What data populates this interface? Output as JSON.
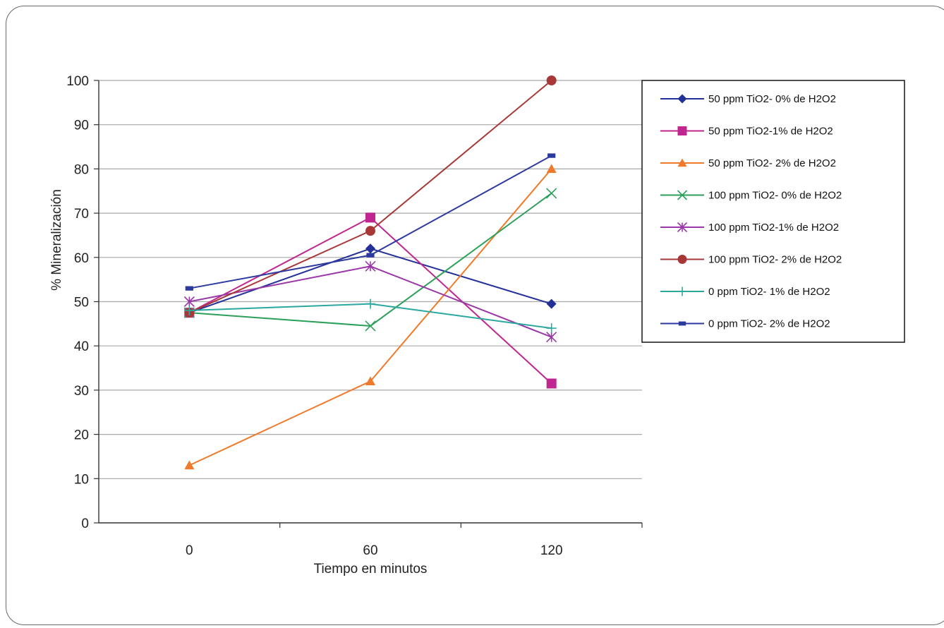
{
  "chart_data": {
    "type": "line",
    "xlabel": "Tiempo en minutos",
    "ylabel": "% Mineralización",
    "x": [
      0,
      60,
      120
    ],
    "ylim": [
      0,
      100
    ],
    "yticks": [
      0,
      10,
      20,
      30,
      40,
      50,
      60,
      70,
      80,
      90,
      100
    ],
    "grid": true,
    "legend_position": "right",
    "series": [
      {
        "name": "50 ppm TiO2- 0% de H2O2",
        "values": [
          47.5,
          62,
          49.5
        ],
        "color": "#24309a",
        "marker": "diamond"
      },
      {
        "name": "50 ppm TiO2-1% de H2O2",
        "values": [
          47.5,
          69,
          31.5
        ],
        "color": "#c0268f",
        "marker": "square"
      },
      {
        "name": "50 ppm TiO2- 2% de H2O2",
        "values": [
          13,
          32,
          80
        ],
        "color": "#f07a2a",
        "marker": "triangle"
      },
      {
        "name": "100 ppm TiO2- 0% de H2O2",
        "values": [
          47.5,
          44.5,
          74.5
        ],
        "color": "#2ca05a",
        "marker": "x"
      },
      {
        "name": "100 ppm TiO2-1% de H2O2",
        "values": [
          50,
          58,
          42
        ],
        "color": "#9a38a8",
        "marker": "asterisk"
      },
      {
        "name": "100 ppm TiO2- 2% de H2O2",
        "values": [
          47.5,
          66,
          100
        ],
        "color": "#a83838",
        "marker": "circle"
      },
      {
        "name": "0 ppm TiO2- 1% de H2O2",
        "values": [
          48,
          49.5,
          44
        ],
        "color": "#2aa8a0",
        "marker": "plus"
      },
      {
        "name": "0 ppm TiO2- 2% de H2O2",
        "values": [
          53,
          60.5,
          83
        ],
        "color": "#2c3aa0",
        "marker": "dash"
      }
    ]
  }
}
